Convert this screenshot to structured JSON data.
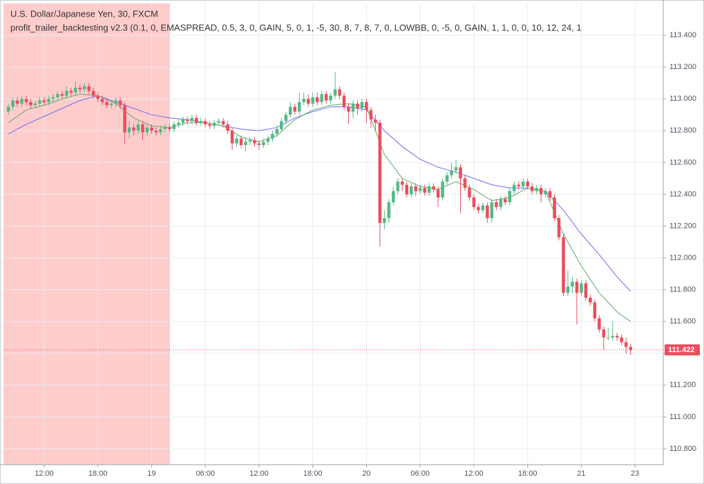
{
  "chart_data": {
    "type": "candlestick",
    "title": "U.S. Dollar/Japanese Yen, 30, FXCM",
    "subtitle": "profit_trailer_backtesting v2.3 (0.1, 0, EMASPREAD, 0.5, 3, 0, GAIN, 5, 0, 1, -5, 30, 8, 7, 8, 7, 0, LOWBB, 0, -5, 0, GAIN, 1, 1, 0, 0, 10, 12, 24, 1",
    "up_color": "#53b987",
    "down_color": "#eb4d5c",
    "open": [
      112.92,
      112.95,
      112.99,
      112.97,
      113.0,
      112.98,
      112.96,
      112.97,
      112.99,
      112.98,
      113.0,
      113.01,
      113.03,
      113.02,
      113.05,
      113.04,
      113.07,
      113.06,
      113.08,
      113.05,
      113.02,
      113.0,
      112.98,
      112.96,
      112.97,
      112.99,
      112.96,
      112.79,
      112.82,
      112.8,
      112.84,
      112.79,
      112.82,
      112.8,
      112.79,
      112.81,
      112.82,
      112.81,
      112.84,
      112.85,
      112.87,
      112.86,
      112.88,
      112.85,
      112.86,
      112.84,
      112.83,
      112.85,
      112.86,
      112.84,
      112.8,
      112.72,
      112.75,
      112.71,
      112.73,
      112.74,
      112.72,
      112.71,
      112.73,
      112.75,
      112.78,
      112.81,
      112.86,
      112.9,
      112.95,
      112.92,
      112.98,
      113.0,
      112.97,
      113.01,
      112.98,
      113.03,
      112.99,
      113.02,
      113.06,
      113.02,
      112.95,
      112.92,
      112.97,
      112.94,
      112.98,
      112.93,
      112.87,
      112.85,
      112.22,
      112.25,
      112.35,
      112.42,
      112.48,
      112.46,
      112.4,
      112.45,
      112.42,
      112.44,
      112.41,
      112.45,
      112.43,
      112.38,
      112.48,
      112.52,
      112.55,
      112.57,
      112.5,
      112.44,
      112.38,
      112.32,
      112.3,
      112.33,
      112.25,
      112.35,
      112.32,
      112.37,
      112.35,
      112.42,
      112.46,
      112.45,
      112.48,
      112.45,
      112.42,
      112.44,
      112.4,
      112.42,
      112.38,
      112.25,
      112.13,
      111.78,
      111.82,
      111.85,
      111.78,
      111.84,
      111.75,
      111.72,
      111.62,
      111.55,
      111.5,
      111.5,
      111.51,
      111.5,
      111.47,
      111.44
    ],
    "high": [
      112.97,
      113.01,
      113.01,
      113.02,
      113.02,
      113.0,
      112.99,
      113.01,
      113.01,
      113.02,
      113.03,
      113.05,
      113.05,
      113.08,
      113.07,
      113.11,
      113.09,
      113.1,
      113.1,
      113.07,
      113.04,
      113.02,
      113.0,
      112.99,
      113.01,
      113.01,
      112.98,
      112.86,
      112.84,
      112.86,
      112.86,
      112.84,
      112.84,
      112.82,
      112.83,
      112.84,
      112.84,
      112.86,
      112.87,
      112.89,
      112.89,
      112.9,
      112.9,
      112.88,
      112.88,
      112.86,
      112.87,
      112.88,
      112.88,
      112.86,
      112.82,
      112.77,
      112.77,
      112.76,
      112.76,
      112.76,
      112.74,
      112.75,
      112.77,
      112.8,
      112.83,
      112.88,
      112.92,
      112.98,
      112.97,
      113.04,
      113.04,
      113.03,
      113.04,
      113.04,
      113.05,
      113.05,
      113.04,
      113.17,
      113.08,
      113.04,
      112.97,
      112.99,
      112.99,
      113.0,
      113.0,
      112.95,
      112.9,
      112.87,
      112.3,
      112.37,
      112.45,
      112.5,
      112.5,
      112.48,
      112.47,
      112.47,
      112.46,
      112.46,
      112.47,
      112.47,
      112.45,
      112.5,
      112.54,
      112.6,
      112.62,
      112.59,
      112.52,
      112.46,
      112.4,
      112.34,
      112.35,
      112.35,
      112.37,
      112.37,
      112.39,
      112.39,
      112.44,
      112.48,
      112.48,
      112.5,
      112.5,
      112.47,
      112.46,
      112.46,
      112.44,
      112.44,
      112.4,
      112.27,
      112.15,
      111.92,
      111.88,
      111.87,
      111.86,
      111.86,
      111.77,
      111.74,
      111.64,
      111.57,
      111.56,
      111.6,
      111.53,
      111.52,
      111.5,
      111.46
    ],
    "low": [
      112.9,
      112.93,
      112.95,
      112.95,
      112.96,
      112.94,
      112.94,
      112.95,
      112.96,
      112.96,
      112.98,
      112.99,
      113.0,
      113.0,
      113.02,
      113.02,
      113.04,
      113.04,
      113.03,
      113.0,
      112.98,
      112.96,
      112.94,
      112.94,
      112.95,
      112.94,
      112.72,
      112.75,
      112.77,
      112.78,
      112.74,
      112.77,
      112.78,
      112.77,
      112.77,
      112.79,
      112.79,
      112.79,
      112.82,
      112.83,
      112.84,
      112.84,
      112.83,
      112.83,
      112.82,
      112.81,
      112.81,
      112.83,
      112.82,
      112.78,
      112.68,
      112.7,
      112.69,
      112.67,
      112.71,
      112.7,
      112.68,
      112.69,
      112.71,
      112.73,
      112.76,
      112.79,
      112.84,
      112.88,
      112.9,
      112.9,
      112.96,
      112.95,
      112.95,
      112.96,
      112.96,
      112.97,
      112.97,
      113.0,
      113.0,
      112.93,
      112.84,
      112.88,
      112.9,
      112.92,
      112.85,
      112.82,
      112.8,
      112.07,
      112.18,
      112.22,
      112.33,
      112.4,
      112.42,
      112.38,
      112.38,
      112.39,
      112.4,
      112.39,
      112.39,
      112.41,
      112.32,
      112.36,
      112.46,
      112.5,
      112.53,
      112.28,
      112.42,
      112.36,
      112.3,
      112.28,
      112.28,
      112.22,
      112.22,
      112.3,
      112.3,
      112.33,
      112.33,
      112.4,
      112.43,
      112.43,
      112.43,
      112.4,
      112.4,
      112.35,
      112.38,
      112.36,
      112.23,
      112.11,
      111.76,
      111.76,
      111.78,
      111.58,
      111.76,
      111.73,
      111.7,
      111.6,
      111.53,
      111.42,
      111.48,
      111.48,
      111.48,
      111.45,
      111.4,
      111.39
    ],
    "close": [
      112.95,
      112.99,
      112.97,
      113.0,
      112.98,
      112.96,
      112.97,
      112.99,
      112.98,
      113.0,
      113.01,
      113.03,
      113.02,
      113.05,
      113.04,
      113.07,
      113.06,
      113.08,
      113.05,
      113.02,
      113.0,
      112.98,
      112.96,
      112.97,
      112.99,
      112.96,
      112.79,
      112.82,
      112.8,
      112.84,
      112.79,
      112.82,
      112.8,
      112.79,
      112.81,
      112.82,
      112.81,
      112.84,
      112.85,
      112.87,
      112.86,
      112.88,
      112.85,
      112.86,
      112.84,
      112.83,
      112.85,
      112.86,
      112.84,
      112.8,
      112.72,
      112.75,
      112.71,
      112.73,
      112.74,
      112.72,
      112.71,
      112.73,
      112.75,
      112.78,
      112.81,
      112.86,
      112.9,
      112.95,
      112.92,
      112.98,
      113.0,
      112.97,
      113.01,
      112.98,
      113.03,
      112.99,
      113.02,
      113.06,
      113.02,
      112.95,
      112.92,
      112.97,
      112.94,
      112.98,
      112.93,
      112.87,
      112.85,
      112.22,
      112.25,
      112.35,
      112.42,
      112.48,
      112.46,
      112.4,
      112.45,
      112.42,
      112.44,
      112.41,
      112.45,
      112.43,
      112.38,
      112.48,
      112.52,
      112.55,
      112.57,
      112.5,
      112.44,
      112.38,
      112.32,
      112.3,
      112.33,
      112.25,
      112.35,
      112.32,
      112.37,
      112.35,
      112.42,
      112.46,
      112.45,
      112.48,
      112.45,
      112.42,
      112.44,
      112.4,
      112.42,
      112.38,
      112.25,
      112.13,
      111.78,
      111.82,
      111.85,
      111.78,
      111.84,
      111.75,
      111.72,
      111.62,
      111.55,
      111.5,
      111.5,
      111.51,
      111.5,
      111.47,
      111.44,
      111.42
    ],
    "lines": [
      {
        "color": "#6b6bf0",
        "x": [
          0,
          4,
          8,
          12,
          16,
          20,
          24,
          28,
          32,
          36,
          40,
          44,
          48,
          52,
          56,
          60,
          64,
          68,
          72,
          76,
          80,
          84,
          88,
          92,
          96,
          100,
          104,
          108,
          112,
          116,
          120,
          124,
          128,
          132,
          136,
          139
        ],
        "values": [
          112.78,
          112.84,
          112.89,
          112.94,
          112.99,
          113.02,
          112.98,
          112.94,
          112.9,
          112.88,
          112.87,
          112.85,
          112.83,
          112.81,
          112.8,
          112.82,
          112.88,
          112.92,
          112.95,
          112.95,
          112.93,
          112.8,
          112.7,
          112.62,
          112.57,
          112.54,
          112.5,
          112.46,
          112.44,
          112.44,
          112.42,
          112.3,
          112.15,
          112.02,
          111.88,
          111.79
        ]
      },
      {
        "color": "#5fa866",
        "x": [
          0,
          4,
          8,
          12,
          16,
          20,
          24,
          28,
          32,
          36,
          40,
          44,
          48,
          52,
          56,
          60,
          64,
          68,
          72,
          76,
          80,
          84,
          88,
          92,
          96,
          100,
          104,
          108,
          112,
          116,
          120,
          124,
          128,
          132,
          136,
          139
        ],
        "values": [
          112.85,
          112.93,
          112.96,
          113.0,
          113.03,
          113.02,
          112.97,
          112.88,
          112.83,
          112.82,
          112.85,
          112.85,
          112.83,
          112.76,
          112.73,
          112.77,
          112.87,
          112.93,
          112.96,
          112.97,
          112.95,
          112.65,
          112.5,
          112.45,
          112.43,
          112.48,
          112.43,
          112.36,
          112.38,
          112.44,
          112.42,
          112.15,
          111.95,
          111.78,
          111.66,
          111.6
        ]
      }
    ],
    "shaded_range": [
      -1.1,
      36.1
    ],
    "shade_color": "#ffcccc",
    "last_price": 111.422,
    "last_price_color": "#eb4d5c",
    "grid": true,
    "xlim": [
      -1.1,
      146.3
    ],
    "xticks": [
      {
        "value": 8,
        "label": "12:00"
      },
      {
        "value": 20,
        "label": "18:00"
      },
      32,
      {
        "value": 44,
        "label": "06:00"
      },
      {
        "value": 56,
        "label": "12:00"
      },
      {
        "value": 68,
        "label": "18:00"
      },
      80,
      {
        "value": 92,
        "label": "06:00"
      },
      {
        "value": 104,
        "label": "12:00"
      },
      {
        "value": 116,
        "label": "18:00"
      },
      128,
      140
    ],
    "xtick_labels_plain": [
      "19",
      "20",
      "21",
      "23"
    ],
    "ylim": [
      110.7,
      113.6
    ],
    "yticks": [
      {
        "value": 110.8,
        "label": "110.800"
      },
      {
        "value": 111.0,
        "label": "111.000"
      },
      {
        "value": 111.2,
        "label": "111.200"
      },
      {
        "value": 111.4,
        "label": "111.400"
      },
      {
        "value": 111.6,
        "label": "111.600"
      },
      {
        "value": 111.8,
        "label": "111.800"
      },
      {
        "value": 112.0,
        "label": "112.000"
      },
      {
        "value": 112.2,
        "label": "112.200"
      },
      {
        "value": 112.4,
        "label": "112.400"
      },
      {
        "value": 112.6,
        "label": "112.600"
      },
      {
        "value": 112.8,
        "label": "112.800"
      },
      {
        "value": 113.0,
        "label": "113.000"
      },
      {
        "value": 113.2,
        "label": "113.200"
      },
      {
        "value": 113.4,
        "label": "113.400"
      }
    ]
  }
}
